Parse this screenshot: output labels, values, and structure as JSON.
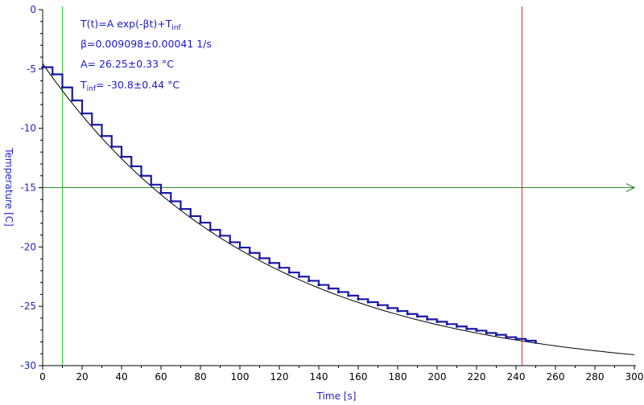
{
  "chart_data": {
    "type": "scatter",
    "title": "",
    "xlabel": "Time [s]",
    "ylabel": "Temperature [C]",
    "xlim": [
      0,
      300
    ],
    "ylim": [
      -30,
      0
    ],
    "x_ticks": [
      0,
      20,
      40,
      60,
      80,
      100,
      120,
      140,
      160,
      180,
      200,
      220,
      240,
      260,
      280,
      300
    ],
    "y_ticks": [
      0,
      -5,
      -10,
      -15,
      -20,
      -25,
      -30
    ],
    "x_tick_labels": [
      "0",
      "20",
      "40",
      "60",
      "80",
      "100",
      "120",
      "140",
      "160",
      "180",
      "200",
      "220",
      "240",
      "260",
      "280",
      "300"
    ],
    "y_tick_labels": [
      "0",
      "-5",
      "-10",
      "-15",
      "-20",
      "-25",
      "-30"
    ],
    "grid": false,
    "colors": {
      "data": "#1a1aa6",
      "axis_text": "#2222cc",
      "fit": "#000000",
      "h_cursor": "#2e8b2e",
      "v_cursor_green": "#33cc33",
      "v_cursor_red": "#dd2222"
    },
    "fit": {
      "model_prefix": "T(t)=A exp(-βt)+T",
      "model_sub": "inf",
      "beta_text": "β=0.009098±0.00041 1/s",
      "A_text": "A= 26.25±0.33 °C",
      "tinf_prefix": "T",
      "tinf_sub": "inf",
      "tinf_text": "= -30.8±0.44 °C",
      "A": 26.25,
      "beta": 0.009098,
      "T_inf": -30.8,
      "x_range": [
        0,
        300
      ]
    },
    "series": [
      {
        "x": [
          0,
          5,
          10,
          15,
          20,
          25,
          30,
          35,
          40,
          45,
          50,
          55,
          60,
          65,
          70,
          75,
          80,
          85,
          90,
          95,
          100,
          105,
          110,
          115,
          120,
          125,
          130,
          135,
          140,
          145,
          150,
          155,
          160,
          165,
          170,
          175,
          180,
          185,
          190,
          195,
          200,
          205,
          210,
          215,
          220,
          225,
          230,
          235,
          240,
          245,
          250
        ],
        "y": [
          -4.85,
          -5.45,
          -6.55,
          -7.65,
          -8.75,
          -9.7,
          -10.65,
          -11.55,
          -12.4,
          -13.2,
          -14.0,
          -14.75,
          -15.45,
          -16.15,
          -16.8,
          -17.4,
          -17.95,
          -18.55,
          -19.05,
          -19.6,
          -20.05,
          -20.5,
          -20.95,
          -21.35,
          -21.75,
          -22.15,
          -22.5,
          -22.85,
          -23.2,
          -23.5,
          -23.8,
          -24.1,
          -24.4,
          -24.65,
          -24.9,
          -25.15,
          -25.4,
          -25.65,
          -25.85,
          -26.1,
          -26.3,
          -26.5,
          -26.7,
          -26.9,
          -27.05,
          -27.25,
          -27.4,
          -27.6,
          -27.75,
          -27.9,
          -28.05
        ]
      }
    ],
    "cursors": {
      "vertical": [
        {
          "x": 10,
          "color": "#33cc33"
        },
        {
          "x": 243,
          "color": "#dd2222"
        }
      ],
      "horizontal": [
        {
          "y": -15,
          "color": "#2e8b2e"
        }
      ]
    }
  }
}
